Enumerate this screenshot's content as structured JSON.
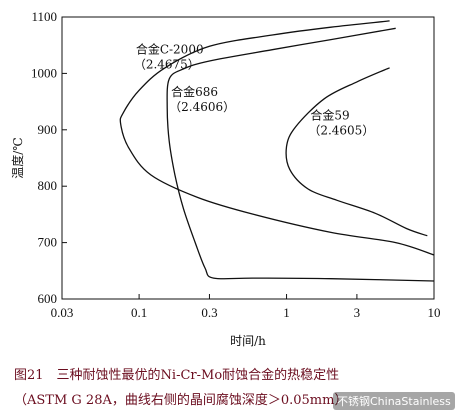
{
  "chart_data": {
    "type": "line",
    "x_scale": "log",
    "xlabel": "时间/h",
    "ylabel": "温度/℃",
    "xlim": [
      0.03,
      10
    ],
    "ylim": [
      600,
      1100
    ],
    "x_ticks": [
      0.03,
      0.1,
      0.3,
      1,
      3,
      10
    ],
    "x_tick_labels": [
      "0.03",
      "0.1",
      "0.3",
      "1",
      "3",
      "10"
    ],
    "y_ticks": [
      600,
      700,
      800,
      900,
      1000,
      1100
    ],
    "y_tick_labels": [
      "600",
      "700",
      "800",
      "900",
      "1000",
      "1100"
    ],
    "grid": false,
    "series": [
      {
        "name": "合金C-2000",
        "code": "（2.4675）",
        "points": [
          [
            5.0,
            1093
          ],
          [
            2.0,
            1082
          ],
          [
            0.8,
            1068
          ],
          [
            0.3,
            1048
          ],
          [
            0.15,
            1010
          ],
          [
            0.1,
            970
          ],
          [
            0.078,
            930
          ],
          [
            0.075,
            910
          ],
          [
            0.085,
            868
          ],
          [
            0.12,
            820
          ],
          [
            0.25,
            780
          ],
          [
            0.6,
            750
          ],
          [
            2.0,
            718
          ],
          [
            5.5,
            700
          ],
          [
            10.0,
            678
          ]
        ]
      },
      {
        "name": "合金686",
        "code": "（2.4606）",
        "points": [
          [
            5.5,
            1080
          ],
          [
            2.0,
            1060
          ],
          [
            0.8,
            1042
          ],
          [
            0.3,
            1022
          ],
          [
            0.2,
            1008
          ],
          [
            0.16,
            990
          ],
          [
            0.155,
            940
          ],
          [
            0.16,
            880
          ],
          [
            0.175,
            820
          ],
          [
            0.2,
            760
          ],
          [
            0.24,
            700
          ],
          [
            0.28,
            655
          ],
          [
            0.32,
            637
          ],
          [
            0.6,
            637
          ],
          [
            2.0,
            636
          ],
          [
            10.0,
            632
          ]
        ]
      },
      {
        "name": "合金59",
        "code": "（2.4605）",
        "points": [
          [
            5.0,
            1010
          ],
          [
            3.0,
            985
          ],
          [
            1.8,
            955
          ],
          [
            1.15,
            905
          ],
          [
            1.0,
            870
          ],
          [
            1.05,
            830
          ],
          [
            1.4,
            795
          ],
          [
            2.2,
            775
          ],
          [
            4.0,
            752
          ],
          [
            6.5,
            725
          ],
          [
            9.0,
            712
          ]
        ]
      }
    ]
  },
  "caption": {
    "line1": "图21　三种耐蚀性最优的Ni-Cr-Mo耐蚀合金的热稳定性",
    "line2": "（ASTM G 28A，曲线右侧的晶间腐蚀深度＞0.05mm）"
  },
  "watermark": "不锈钢ChinaStainless"
}
